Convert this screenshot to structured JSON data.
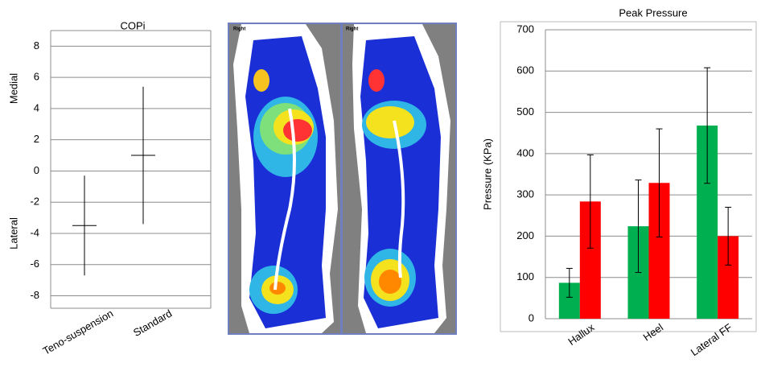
{
  "chart_data": [
    {
      "type": "errorbar",
      "title": "COPi",
      "y_annotations": [
        "Medial",
        "Lateral"
      ],
      "categories": [
        "Teno-suspension",
        "Standard"
      ],
      "values": [
        -3.5,
        1.0
      ],
      "errors": [
        3.2,
        4.4
      ],
      "color": "#000000",
      "ylim": [
        -8.8,
        9
      ],
      "yticks": [
        -8,
        -6,
        -4,
        -2,
        0,
        2,
        4,
        6,
        8
      ],
      "grid": true
    },
    {
      "type": "bar",
      "title": "Peak Pressure",
      "y_label": "Pressure (KPa)",
      "categories": [
        "Hallux",
        "Heel",
        "Lateral FF"
      ],
      "series": [
        {
          "color": "#00b050",
          "values": [
            87,
            224,
            468
          ],
          "errors": [
            35,
            112,
            140
          ]
        },
        {
          "color": "#ff0000",
          "values": [
            284,
            329,
            200
          ],
          "errors": [
            113,
            131,
            70
          ]
        }
      ],
      "ylim": [
        0,
        700
      ],
      "yticks": [
        0,
        100,
        200,
        300,
        400,
        500,
        600,
        700
      ],
      "grid": true
    }
  ],
  "pressure_maps": [
    {
      "label": "Right"
    },
    {
      "label": "Right"
    }
  ]
}
